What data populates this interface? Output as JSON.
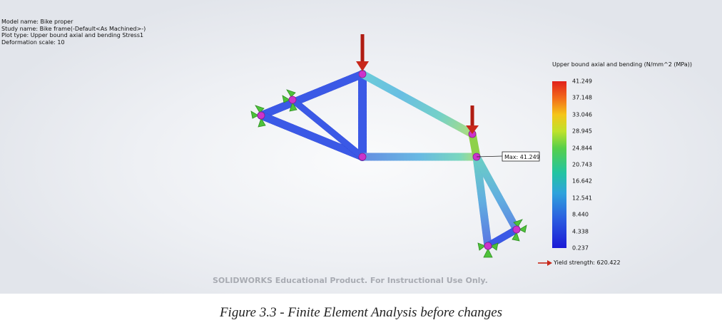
{
  "info": {
    "model_name": "Model name: Bike proper",
    "study_name": "Study name: Bike frame(-Default<As Machined>-)",
    "plot_type": "Plot type: Upper bound axial and bending Stress1",
    "deformation_scale": "Deformation scale: 10"
  },
  "legend": {
    "title": "Upper bound axial and bending (N/mm^2 (MPa))",
    "ticks": [
      "41.249",
      "37.148",
      "33.046",
      "28.945",
      "24.844",
      "20.743",
      "16.642",
      "12.541",
      "8.440",
      "4.338",
      "0.237"
    ],
    "yield_label": "Yield strength: 620.422"
  },
  "max_label": "Max: 41.249",
  "watermark": "SOLIDWORKS Educational Product. For Instructional Use Only.",
  "caption": "Figure 3.3 - Finite Element Analysis before changes",
  "colors": {
    "low": "#1c1ad6",
    "mid_low": "#2b5fe0",
    "mid": "#33b9c9",
    "high": "#8ed14a",
    "node": "#cc33cc",
    "fixture": "#4ec23a",
    "load_arrow": "#b01c12"
  }
}
